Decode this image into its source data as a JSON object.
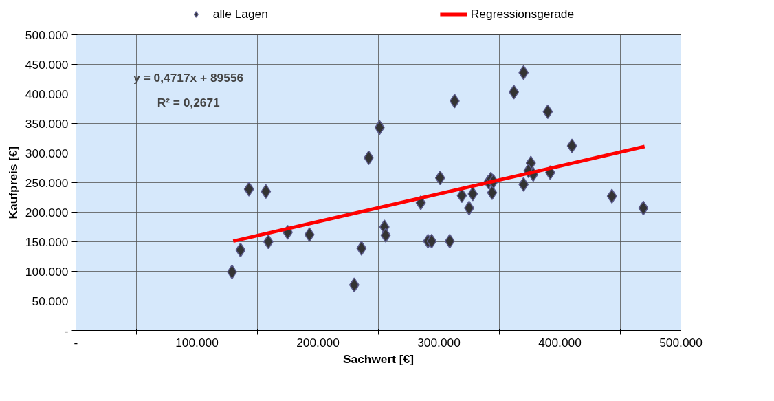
{
  "chart_data": {
    "type": "scatter",
    "xlabel": "Sachwert [€]",
    "ylabel": "Kaufpreis [€]",
    "xlim": [
      0,
      500000
    ],
    "ylim": [
      0,
      500000
    ],
    "xticks": [
      {
        "value": 0,
        "label": "-"
      },
      {
        "value": 50000,
        "label": null
      },
      {
        "value": 100000,
        "label": "100.000"
      },
      {
        "value": 150000,
        "label": null
      },
      {
        "value": 200000,
        "label": "200.000"
      },
      {
        "value": 250000,
        "label": null
      },
      {
        "value": 300000,
        "label": "300.000"
      },
      {
        "value": 350000,
        "label": null
      },
      {
        "value": 400000,
        "label": "400.000"
      },
      {
        "value": 450000,
        "label": null
      },
      {
        "value": 500000,
        "label": "500.000"
      }
    ],
    "yticks": [
      {
        "value": 0,
        "label": "-"
      },
      {
        "value": 50000,
        "label": "50.000"
      },
      {
        "value": 100000,
        "label": "100.000"
      },
      {
        "value": 150000,
        "label": "150.000"
      },
      {
        "value": 200000,
        "label": "200.000"
      },
      {
        "value": 250000,
        "label": "250.000"
      },
      {
        "value": 300000,
        "label": "300.000"
      },
      {
        "value": 350000,
        "label": "350.000"
      },
      {
        "value": 400000,
        "label": "400.000"
      },
      {
        "value": 450000,
        "label": "450.000"
      },
      {
        "value": 500000,
        "label": "500.000"
      }
    ],
    "grid": true,
    "legend": "top",
    "marker": "diamond",
    "series": [
      {
        "name": "alle Lagen",
        "color": "#333333",
        "x": [
          129000,
          136000,
          143000,
          159000,
          157000,
          175000,
          193000,
          230000,
          236000,
          242000,
          251000,
          255000,
          256000,
          285000,
          291000,
          294000,
          301000,
          309000,
          313000,
          319000,
          325000,
          328000,
          341000,
          343000,
          344000,
          345000,
          370000,
          370000,
          362000,
          390000,
          376000,
          374000,
          378000,
          392000,
          410000,
          443000,
          469000
        ],
        "values": [
          99000,
          136000,
          239000,
          150000,
          235000,
          166000,
          162000,
          77000,
          139000,
          292000,
          343000,
          175000,
          161000,
          216000,
          151000,
          151000,
          258000,
          151000,
          388000,
          228000,
          207000,
          231000,
          251000,
          256000,
          233000,
          252000,
          247000,
          436000,
          403000,
          370000,
          283000,
          270000,
          264000,
          267000,
          312000,
          227000,
          207000
        ]
      },
      {
        "name": "Regressionsgerade",
        "type": "line",
        "color": "#ff0000",
        "marker": "none",
        "x": [
          130000,
          470000
        ],
        "values": [
          151000,
          311000
        ]
      }
    ],
    "annotations": [
      "y = 0,4717x + 89556",
      "R² = 0,2671"
    ]
  }
}
